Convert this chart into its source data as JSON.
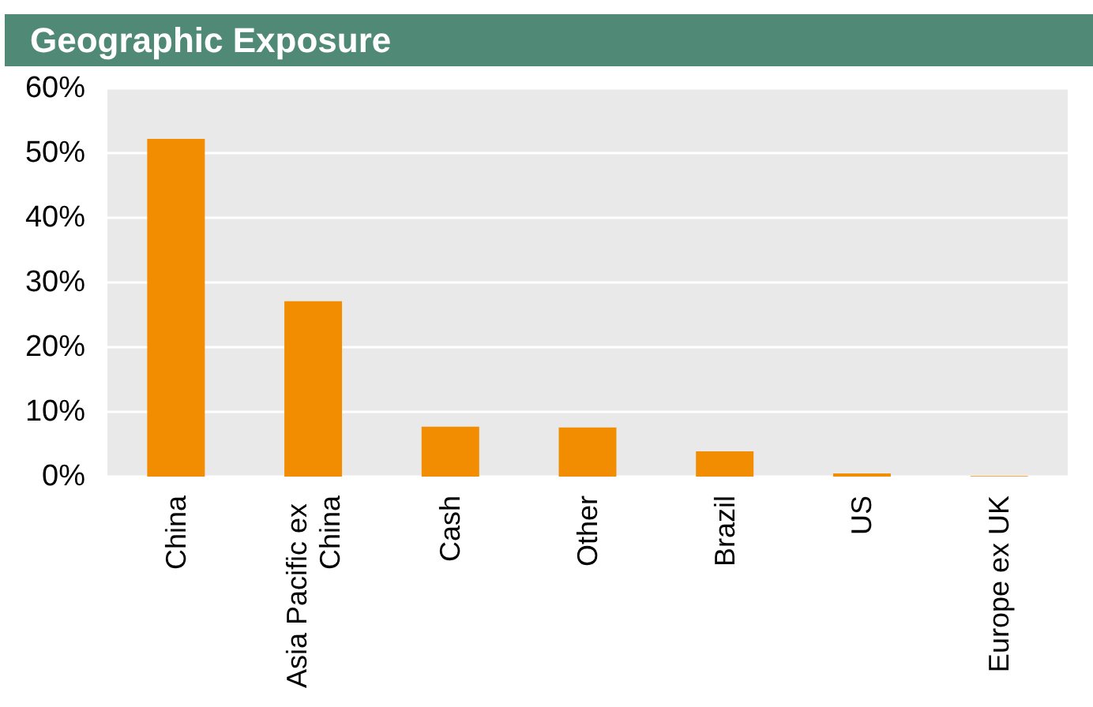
{
  "chart_data": {
    "type": "bar",
    "title": "Geographic Exposure",
    "categories": [
      "China",
      "Asia Pacific ex China",
      "Cash",
      "Other",
      "Brazil",
      "US",
      "Europe ex UK"
    ],
    "values": [
      52.2,
      27.1,
      7.7,
      7.6,
      3.9,
      0.5,
      0.1
    ],
    "color": "#f28c00",
    "ylim": [
      0,
      60
    ],
    "yticks": [
      {
        "value": 0,
        "label": "0%"
      },
      {
        "value": 10,
        "label": "10%"
      },
      {
        "value": 20,
        "label": "20%"
      },
      {
        "value": 30,
        "label": "30%"
      },
      {
        "value": 40,
        "label": "40%"
      },
      {
        "value": 50,
        "label": "50%"
      },
      {
        "value": 60,
        "label": "60%"
      }
    ],
    "grid": "y"
  }
}
